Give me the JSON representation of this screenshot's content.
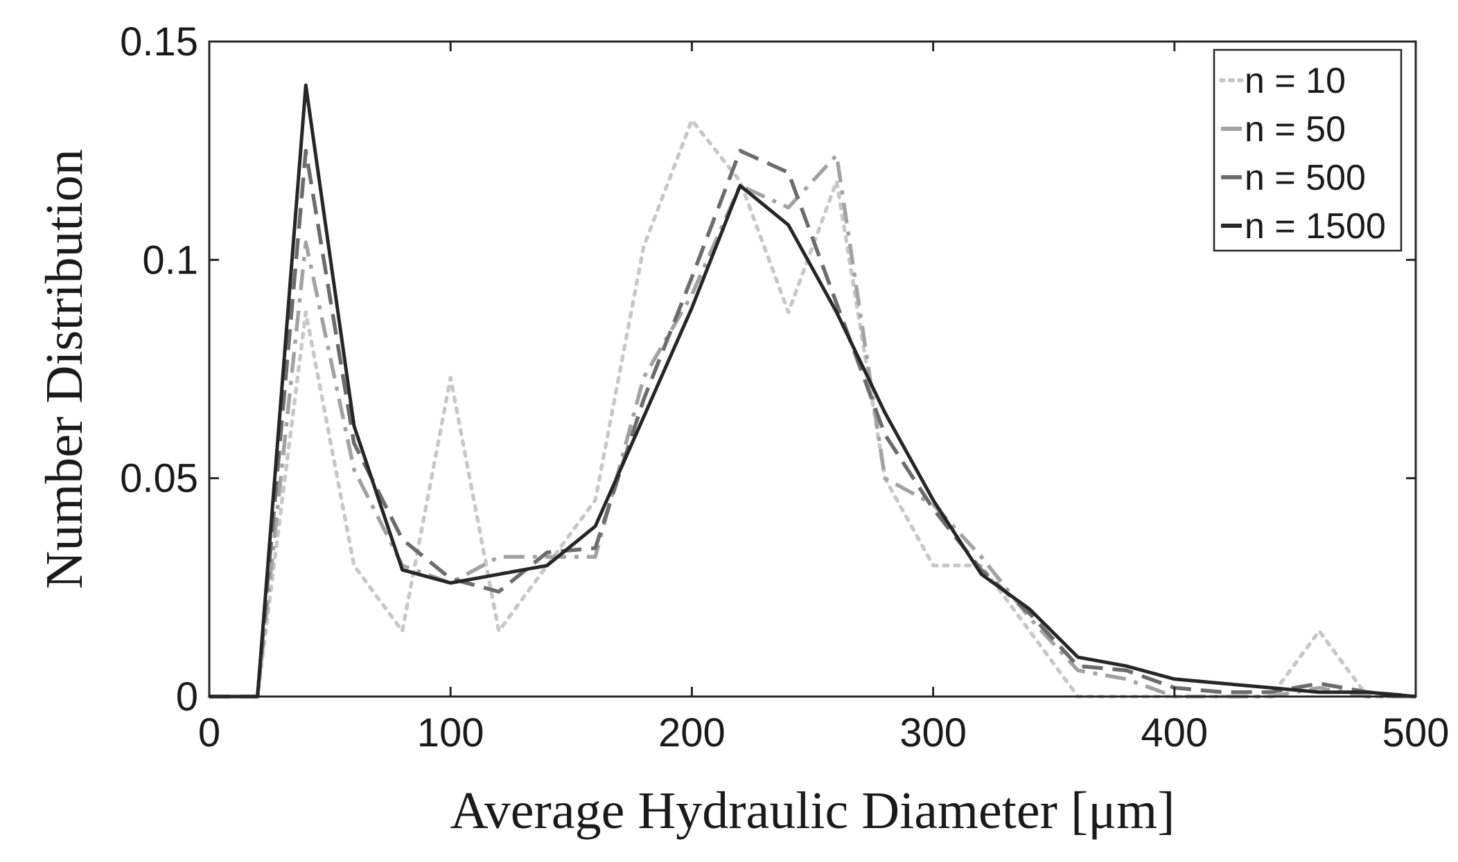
{
  "chart_data": {
    "type": "line",
    "title": "",
    "xlabel": "Average Hydraulic Diameter [μm]",
    "ylabel": "Number Distribution",
    "xlim": [
      0,
      500
    ],
    "ylim": [
      0,
      0.15
    ],
    "xticks": [
      0,
      100,
      200,
      300,
      400,
      500
    ],
    "xtick_labels": [
      "0",
      "100",
      "200",
      "300",
      "400",
      "500"
    ],
    "yticks": [
      0,
      0.05,
      0.1,
      0.15
    ],
    "ytick_labels": [
      "0",
      "0.05",
      "0.1",
      "0.15"
    ],
    "grid": false,
    "legend_position": "top-right",
    "x": [
      0,
      20,
      40,
      60,
      80,
      100,
      120,
      140,
      160,
      180,
      200,
      220,
      240,
      260,
      280,
      300,
      320,
      340,
      360,
      380,
      400,
      420,
      440,
      460,
      480,
      500
    ],
    "series": [
      {
        "name": "n = 10",
        "color": "#c8c8c8",
        "dash": "dotted",
        "values": [
          0,
          0,
          0.088,
          0.03,
          0.015,
          0.073,
          0.015,
          0.03,
          0.045,
          0.103,
          0.132,
          0.118,
          0.088,
          0.118,
          0.05,
          0.03,
          0.03,
          0.015,
          0.0,
          0.0,
          0.0,
          0.0,
          0.0,
          0.015,
          0.0,
          0.0
        ]
      },
      {
        "name": "n = 50",
        "color": "#a2a2a2",
        "dash": "dash-dot",
        "values": [
          0,
          0,
          0.104,
          0.052,
          0.03,
          0.026,
          0.032,
          0.032,
          0.032,
          0.073,
          0.092,
          0.117,
          0.112,
          0.124,
          0.05,
          0.044,
          0.032,
          0.018,
          0.006,
          0.004,
          0.0,
          0.0,
          0.0,
          0.002,
          0.0,
          0.0
        ]
      },
      {
        "name": "n = 500",
        "color": "#6c6c6c",
        "dash": "dashed",
        "values": [
          0,
          0,
          0.125,
          0.058,
          0.036,
          0.027,
          0.024,
          0.033,
          0.034,
          0.068,
          0.096,
          0.125,
          0.12,
          0.09,
          0.06,
          0.043,
          0.029,
          0.019,
          0.007,
          0.006,
          0.002,
          0.001,
          0.001,
          0.003,
          0.001,
          0.0
        ]
      },
      {
        "name": "n = 1500",
        "color": "#262626",
        "dash": "solid",
        "values": [
          0,
          0,
          0.14,
          0.062,
          0.029,
          0.026,
          0.028,
          0.03,
          0.039,
          0.064,
          0.089,
          0.117,
          0.108,
          0.088,
          0.065,
          0.045,
          0.028,
          0.02,
          0.009,
          0.007,
          0.004,
          0.003,
          0.002,
          0.001,
          0.001,
          0.0
        ]
      }
    ]
  }
}
